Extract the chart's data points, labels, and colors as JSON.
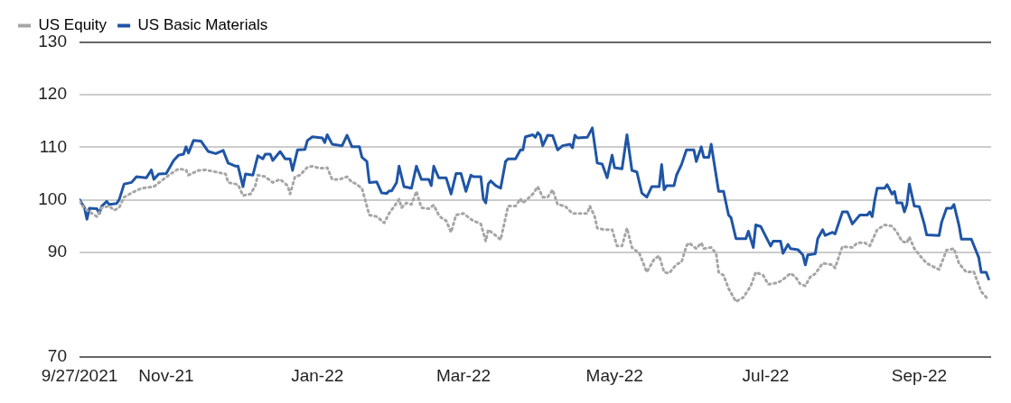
{
  "chart_data": {
    "type": "line",
    "xlim": [
      "2021-09-27",
      "2022-09-30"
    ],
    "xticks": [
      {
        "value": "2021-09-27",
        "label": "9/27/2021"
      },
      {
        "value": "2021-11-01",
        "label": "Nov-21"
      },
      {
        "value": "2022-01-01",
        "label": "Jan-22"
      },
      {
        "value": "2022-03-01",
        "label": "Mar-22"
      },
      {
        "value": "2022-05-01",
        "label": "May-22"
      },
      {
        "value": "2022-07-01",
        "label": "Jul-22"
      },
      {
        "value": "2022-09-01",
        "label": "Sep-22"
      }
    ],
    "ylim": [
      70,
      130
    ],
    "yticks": [
      70,
      90,
      100,
      110,
      120,
      130
    ],
    "grid": "y",
    "legend": "top left",
    "marker": "none",
    "series": [
      {
        "name": "US Equity",
        "color": "#a6a6a6",
        "line_style": "dotted",
        "x": [
          "2021-09-27",
          "2021-09-29",
          "2021-10-01",
          "2021-10-04",
          "2021-10-06",
          "2021-10-09",
          "2021-10-11",
          "2021-10-13",
          "2021-10-15",
          "2021-10-18",
          "2021-10-22",
          "2021-10-27",
          "2021-10-30",
          "2021-11-03",
          "2021-11-06",
          "2021-11-09",
          "2021-11-10",
          "2021-11-14",
          "2021-11-17",
          "2021-11-21",
          "2021-11-25",
          "2021-11-26",
          "2021-11-30",
          "2021-12-02",
          "2021-12-05",
          "2021-12-07",
          "2021-12-08",
          "2021-12-11",
          "2021-12-14",
          "2021-12-17",
          "2021-12-20",
          "2021-12-21",
          "2021-12-23",
          "2021-12-25",
          "2021-12-28",
          "2021-12-30",
          "2022-01-02",
          "2022-01-05",
          "2022-01-07",
          "2022-01-10",
          "2022-01-13",
          "2022-01-15",
          "2022-01-16",
          "2022-01-19",
          "2022-01-21",
          "2022-01-22",
          "2022-01-25",
          "2022-01-28",
          "2022-01-30",
          "2022-02-02",
          "2022-02-03",
          "2022-02-04",
          "2022-02-06",
          "2022-02-08",
          "2022-02-10",
          "2022-02-12",
          "2022-02-15",
          "2022-02-17",
          "2022-02-19",
          "2022-02-20",
          "2022-02-22",
          "2022-02-24",
          "2022-02-26",
          "2022-03-01",
          "2022-03-04",
          "2022-03-05",
          "2022-03-08",
          "2022-03-10",
          "2022-03-11",
          "2022-03-14",
          "2022-03-16",
          "2022-03-18",
          "2022-03-19",
          "2022-03-22",
          "2022-03-24",
          "2022-03-25",
          "2022-03-27",
          "2022-03-29",
          "2022-03-31",
          "2022-04-02",
          "2022-04-04",
          "2022-04-06",
          "2022-04-08",
          "2022-04-11",
          "2022-04-14",
          "2022-04-16",
          "2022-04-20",
          "2022-04-21",
          "2022-04-23",
          "2022-04-24",
          "2022-04-27",
          "2022-04-30",
          "2022-05-02",
          "2022-05-04",
          "2022-05-06",
          "2022-05-08",
          "2022-05-11",
          "2022-05-14",
          "2022-05-17",
          "2022-05-19",
          "2022-05-21",
          "2022-05-23",
          "2022-05-26",
          "2022-05-28",
          "2022-05-30",
          "2022-05-31",
          "2022-06-03",
          "2022-06-05",
          "2022-06-06",
          "2022-06-09",
          "2022-06-11",
          "2022-06-12",
          "2022-06-14",
          "2022-06-16",
          "2022-06-19",
          "2022-06-22",
          "2022-06-25",
          "2022-06-27",
          "2022-06-30",
          "2022-07-02",
          "2022-07-06",
          "2022-07-08",
          "2022-07-11",
          "2022-07-13",
          "2022-07-15",
          "2022-07-17",
          "2022-07-19",
          "2022-07-21",
          "2022-07-24",
          "2022-07-28",
          "2022-07-29",
          "2022-07-31",
          "2022-08-01",
          "2022-08-05",
          "2022-08-07",
          "2022-08-10",
          "2022-08-12",
          "2022-08-15",
          "2022-08-18",
          "2022-08-21",
          "2022-08-23",
          "2022-08-25",
          "2022-08-27",
          "2022-08-28",
          "2022-08-30",
          "2022-09-01",
          "2022-09-04",
          "2022-09-09",
          "2022-09-12",
          "2022-09-15",
          "2022-09-17",
          "2022-09-20",
          "2022-09-23",
          "2022-09-26",
          "2022-09-29"
        ],
        "values": [
          99.7,
          98.3,
          97.7,
          96.8,
          98.5,
          98.8,
          98.0,
          98.5,
          100.5,
          101.3,
          102.2,
          102.5,
          103.6,
          105.0,
          105.9,
          105.7,
          104.7,
          105.6,
          105.7,
          105.3,
          104.9,
          103.3,
          102.9,
          100.8,
          101.1,
          102.7,
          104.7,
          104.4,
          103.3,
          103.9,
          102.7,
          101.1,
          104.4,
          104.7,
          106.2,
          106.4,
          106.0,
          106.1,
          103.9,
          103.9,
          104.4,
          103.3,
          103.2,
          102.2,
          98.8,
          97.1,
          96.8,
          95.6,
          97.4,
          99.4,
          100.1,
          98.5,
          99.4,
          99.1,
          101.6,
          98.5,
          98.3,
          99.0,
          97.1,
          96.6,
          96.0,
          93.8,
          97.1,
          97.4,
          96.3,
          96.0,
          95.4,
          92.1,
          94.3,
          93.2,
          92.4,
          96.6,
          98.8,
          98.8,
          100.2,
          99.4,
          100.2,
          101.1,
          102.5,
          100.5,
          100.5,
          101.9,
          99.1,
          98.8,
          97.4,
          97.4,
          97.4,
          98.8,
          96.8,
          94.6,
          94.3,
          94.3,
          91.2,
          91.2,
          94.6,
          90.9,
          89.8,
          86.2,
          88.7,
          89.3,
          86.2,
          86.0,
          87.7,
          88.1,
          91.2,
          91.8,
          90.7,
          91.8,
          90.7,
          90.9,
          89.8,
          86.2,
          85.6,
          83.1,
          80.6,
          81.4,
          83.6,
          86.2,
          85.6,
          83.9,
          84.2,
          84.8,
          86.0,
          85.3,
          83.9,
          83.6,
          85.3,
          85.9,
          87.9,
          87.6,
          87.0,
          89.8,
          91.1,
          90.9,
          91.8,
          91.8,
          91.2,
          94.3,
          95.2,
          95.0,
          93.8,
          92.1,
          91.8,
          92.9,
          90.7,
          89.5,
          87.9,
          86.7,
          90.4,
          90.7,
          87.9,
          86.2,
          86.3,
          82.5,
          80.9
        ]
      },
      {
        "name": "US Basic Materials",
        "color": "#1f55a5",
        "line_style": "solid",
        "x": [
          "2021-09-27",
          "2021-09-29",
          "2021-09-30",
          "2021-10-01",
          "2021-10-04",
          "2021-10-05",
          "2021-10-06",
          "2021-10-08",
          "2021-10-09",
          "2021-10-12",
          "2021-10-13",
          "2021-10-15",
          "2021-10-18",
          "2021-10-20",
          "2021-10-24",
          "2021-10-26",
          "2021-10-27",
          "2021-10-29",
          "2021-11-01",
          "2021-11-04",
          "2021-11-06",
          "2021-11-08",
          "2021-11-09",
          "2021-11-10",
          "2021-11-12",
          "2021-11-15",
          "2021-11-18",
          "2021-11-21",
          "2021-11-24",
          "2021-11-26",
          "2021-11-29",
          "2021-11-30",
          "2021-12-02",
          "2021-12-03",
          "2021-12-06",
          "2021-12-08",
          "2021-12-10",
          "2021-12-11",
          "2021-12-13",
          "2021-12-14",
          "2021-12-17",
          "2021-12-19",
          "2021-12-21",
          "2021-12-22",
          "2021-12-24",
          "2021-12-27",
          "2021-12-28",
          "2021-12-30",
          "2022-01-03",
          "2022-01-04",
          "2022-01-05",
          "2022-01-07",
          "2022-01-11",
          "2022-01-13",
          "2022-01-15",
          "2022-01-18",
          "2022-01-19",
          "2022-01-21",
          "2022-01-22",
          "2022-01-25",
          "2022-01-27",
          "2022-01-29",
          "2022-01-30",
          "2022-01-31",
          "2022-02-02",
          "2022-02-03",
          "2022-02-05",
          "2022-02-08",
          "2022-02-10",
          "2022-02-12",
          "2022-02-15",
          "2022-02-16",
          "2022-02-17",
          "2022-02-19",
          "2022-02-22",
          "2022-02-24",
          "2022-02-26",
          "2022-02-28",
          "2022-03-02",
          "2022-03-04",
          "2022-03-05",
          "2022-03-08",
          "2022-03-09",
          "2022-03-10",
          "2022-03-11",
          "2022-03-12",
          "2022-03-14",
          "2022-03-16",
          "2022-03-18",
          "2022-03-19",
          "2022-03-22",
          "2022-03-24",
          "2022-03-25",
          "2022-03-26",
          "2022-03-29",
          "2022-03-30",
          "2022-03-31",
          "2022-04-01",
          "2022-04-02",
          "2022-04-04",
          "2022-04-06",
          "2022-04-08",
          "2022-04-10",
          "2022-04-13",
          "2022-04-14",
          "2022-04-15",
          "2022-04-16",
          "2022-04-20",
          "2022-04-22",
          "2022-04-24",
          "2022-04-26",
          "2022-04-28",
          "2022-04-30",
          "2022-05-01",
          "2022-05-04",
          "2022-05-06",
          "2022-05-08",
          "2022-05-10",
          "2022-05-12",
          "2022-05-14",
          "2022-05-16",
          "2022-05-19",
          "2022-05-20",
          "2022-05-21",
          "2022-05-22",
          "2022-05-25",
          "2022-05-26",
          "2022-05-28",
          "2022-05-30",
          "2022-06-02",
          "2022-06-03",
          "2022-06-05",
          "2022-06-06",
          "2022-06-08",
          "2022-06-09",
          "2022-06-12",
          "2022-06-14",
          "2022-06-16",
          "2022-06-17",
          "2022-06-19",
          "2022-06-23",
          "2022-06-24",
          "2022-06-26",
          "2022-06-27",
          "2022-06-29",
          "2022-07-03",
          "2022-07-04",
          "2022-07-07",
          "2022-07-08",
          "2022-07-10",
          "2022-07-11",
          "2022-07-14",
          "2022-07-16",
          "2022-07-17",
          "2022-07-18",
          "2022-07-21",
          "2022-07-22",
          "2022-07-24",
          "2022-07-25",
          "2022-07-28",
          "2022-07-29",
          "2022-08-01",
          "2022-08-03",
          "2022-08-05",
          "2022-08-08",
          "2022-08-11",
          "2022-08-12",
          "2022-08-13",
          "2022-08-14",
          "2022-08-15",
          "2022-08-18",
          "2022-08-19",
          "2022-08-21",
          "2022-08-22",
          "2022-08-23",
          "2022-08-25",
          "2022-08-26",
          "2022-08-27",
          "2022-08-28",
          "2022-08-30",
          "2022-09-01",
          "2022-09-03",
          "2022-09-04",
          "2022-09-09",
          "2022-09-10",
          "2022-09-12",
          "2022-09-14",
          "2022-09-15",
          "2022-09-17",
          "2022-09-18",
          "2022-09-22",
          "2022-09-25",
          "2022-09-26",
          "2022-09-28",
          "2022-09-29"
        ],
        "values": [
          100.0,
          98.5,
          96.3,
          98.4,
          98.3,
          97.4,
          98.8,
          99.7,
          99.1,
          99.3,
          100.0,
          103.0,
          103.3,
          104.4,
          104.2,
          105.7,
          103.9,
          104.9,
          105.0,
          107.5,
          108.5,
          108.7,
          110.1,
          108.9,
          111.3,
          111.2,
          109.2,
          108.8,
          109.4,
          107.0,
          106.4,
          106.4,
          102.5,
          104.9,
          104.7,
          108.4,
          107.8,
          108.7,
          108.7,
          107.5,
          109.2,
          107.8,
          107.8,
          105.6,
          109.5,
          109.6,
          111.3,
          112.0,
          111.8,
          110.9,
          112.4,
          110.6,
          110.3,
          112.3,
          110.1,
          110.1,
          108.1,
          107.3,
          103.3,
          103.4,
          101.3,
          101.2,
          101.7,
          101.7,
          103.3,
          106.4,
          102.5,
          102.2,
          106.4,
          103.9,
          103.9,
          102.7,
          106.4,
          104.2,
          104.2,
          101.1,
          105.0,
          105.0,
          101.6,
          104.7,
          104.4,
          104.4,
          100.2,
          99.4,
          103.0,
          103.6,
          102.7,
          102.2,
          107.3,
          107.8,
          107.8,
          109.5,
          109.5,
          112.0,
          112.4,
          111.9,
          112.8,
          112.3,
          110.3,
          112.3,
          112.2,
          109.5,
          110.3,
          110.6,
          109.9,
          112.3,
          111.8,
          111.9,
          113.7,
          107.0,
          106.8,
          104.2,
          108.5,
          106.1,
          105.9,
          112.4,
          105.6,
          105.3,
          101.3,
          100.5,
          102.5,
          102.5,
          106.7,
          101.9,
          102.7,
          102.7,
          104.7,
          106.7,
          109.5,
          109.5,
          107.3,
          110.1,
          108.1,
          108.1,
          110.6,
          101.6,
          101.6,
          97.1,
          96.6,
          92.6,
          92.6,
          94.0,
          90.9,
          95.2,
          94.9,
          91.2,
          92.1,
          92.1,
          89.8,
          91.5,
          90.7,
          90.5,
          89.5,
          87.6,
          89.5,
          89.7,
          92.6,
          94.3,
          93.2,
          93.8,
          93.5,
          97.7,
          97.7,
          95.4,
          97.1,
          97.1,
          97.7,
          96.8,
          99.9,
          102.2,
          102.2,
          102.9,
          101.1,
          101.6,
          99.4,
          99.4,
          97.7,
          99.1,
          103.0,
          98.8,
          98.7,
          95.4,
          93.3,
          93.2,
          95.7,
          98.4,
          98.4,
          99.1,
          95.2,
          92.5,
          92.5,
          89.0,
          86.2,
          86.2,
          84.9
        ]
      }
    ]
  }
}
